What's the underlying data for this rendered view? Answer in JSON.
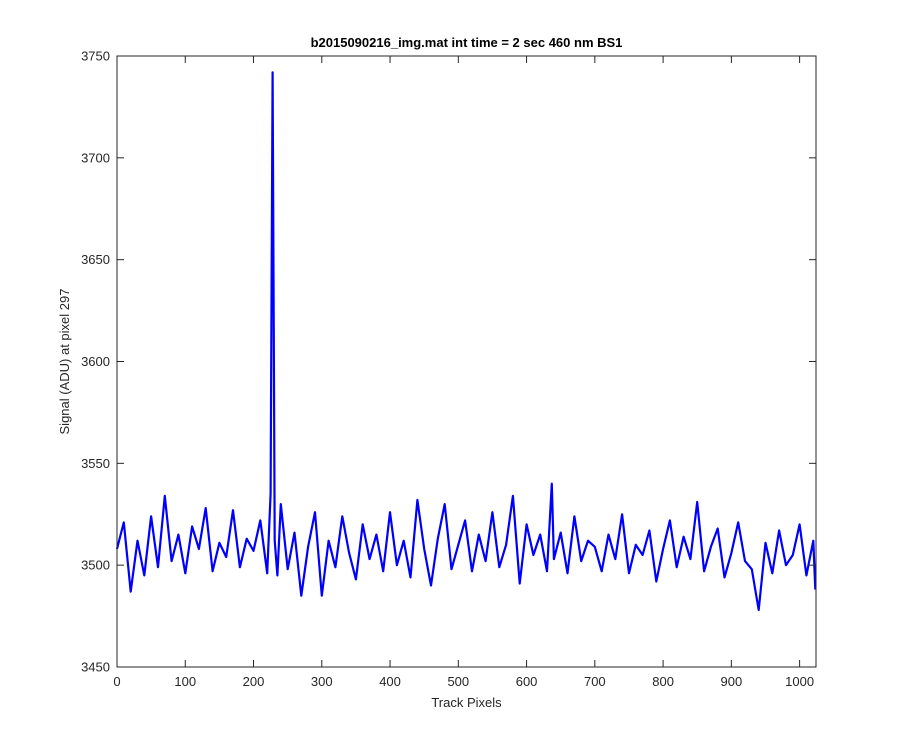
{
  "chart_data": {
    "type": "line",
    "title": "b2015090216_img.mat int time = 2 sec  460 nm BS1",
    "xlabel": "Track Pixels",
    "ylabel": "Signal (ADU) at pixel 297",
    "xlim": [
      0,
      1024
    ],
    "ylim": [
      3450,
      3750
    ],
    "xticks": [
      0,
      100,
      200,
      300,
      400,
      500,
      600,
      700,
      800,
      900,
      1000
    ],
    "yticks": [
      3450,
      3500,
      3550,
      3600,
      3650,
      3700,
      3750
    ],
    "grid": false,
    "legend": "none",
    "series": [
      {
        "color": "#0000ff",
        "x": [
          0,
          10,
          20,
          30,
          40,
          50,
          60,
          70,
          80,
          90,
          100,
          110,
          120,
          130,
          140,
          150,
          160,
          170,
          180,
          190,
          200,
          210,
          220,
          225,
          228,
          231,
          235,
          240,
          250,
          260,
          270,
          280,
          290,
          300,
          310,
          320,
          330,
          340,
          350,
          360,
          370,
          380,
          390,
          400,
          410,
          420,
          430,
          440,
          450,
          460,
          470,
          480,
          490,
          500,
          510,
          520,
          530,
          540,
          550,
          560,
          570,
          580,
          590,
          600,
          610,
          620,
          630,
          637,
          640,
          650,
          660,
          670,
          680,
          690,
          700,
          710,
          720,
          730,
          740,
          750,
          760,
          770,
          780,
          790,
          800,
          810,
          820,
          830,
          840,
          850,
          860,
          870,
          880,
          890,
          900,
          910,
          920,
          930,
          940,
          950,
          960,
          970,
          980,
          990,
          1000,
          1010,
          1020,
          1023
        ],
        "y": [
          3508,
          3521,
          3487,
          3512,
          3495,
          3524,
          3499,
          3534,
          3502,
          3515,
          3496,
          3519,
          3508,
          3528,
          3497,
          3511,
          3504,
          3527,
          3499,
          3513,
          3507,
          3522,
          3496,
          3535,
          3742,
          3512,
          3495,
          3530,
          3498,
          3516,
          3485,
          3509,
          3526,
          3485,
          3512,
          3499,
          3524,
          3506,
          3493,
          3520,
          3503,
          3515,
          3497,
          3526,
          3500,
          3512,
          3494,
          3532,
          3508,
          3490,
          3513,
          3530,
          3498,
          3510,
          3522,
          3497,
          3515,
          3502,
          3526,
          3499,
          3510,
          3534,
          3491,
          3520,
          3505,
          3515,
          3497,
          3540,
          3503,
          3516,
          3496,
          3524,
          3502,
          3512,
          3509,
          3497,
          3515,
          3503,
          3525,
          3496,
          3510,
          3505,
          3517,
          3492,
          3508,
          3522,
          3499,
          3514,
          3503,
          3531,
          3497,
          3509,
          3518,
          3494,
          3506,
          3521,
          3502,
          3498,
          3478,
          3511,
          3496,
          3517,
          3500,
          3505,
          3520,
          3495,
          3512,
          3488
        ]
      }
    ]
  }
}
